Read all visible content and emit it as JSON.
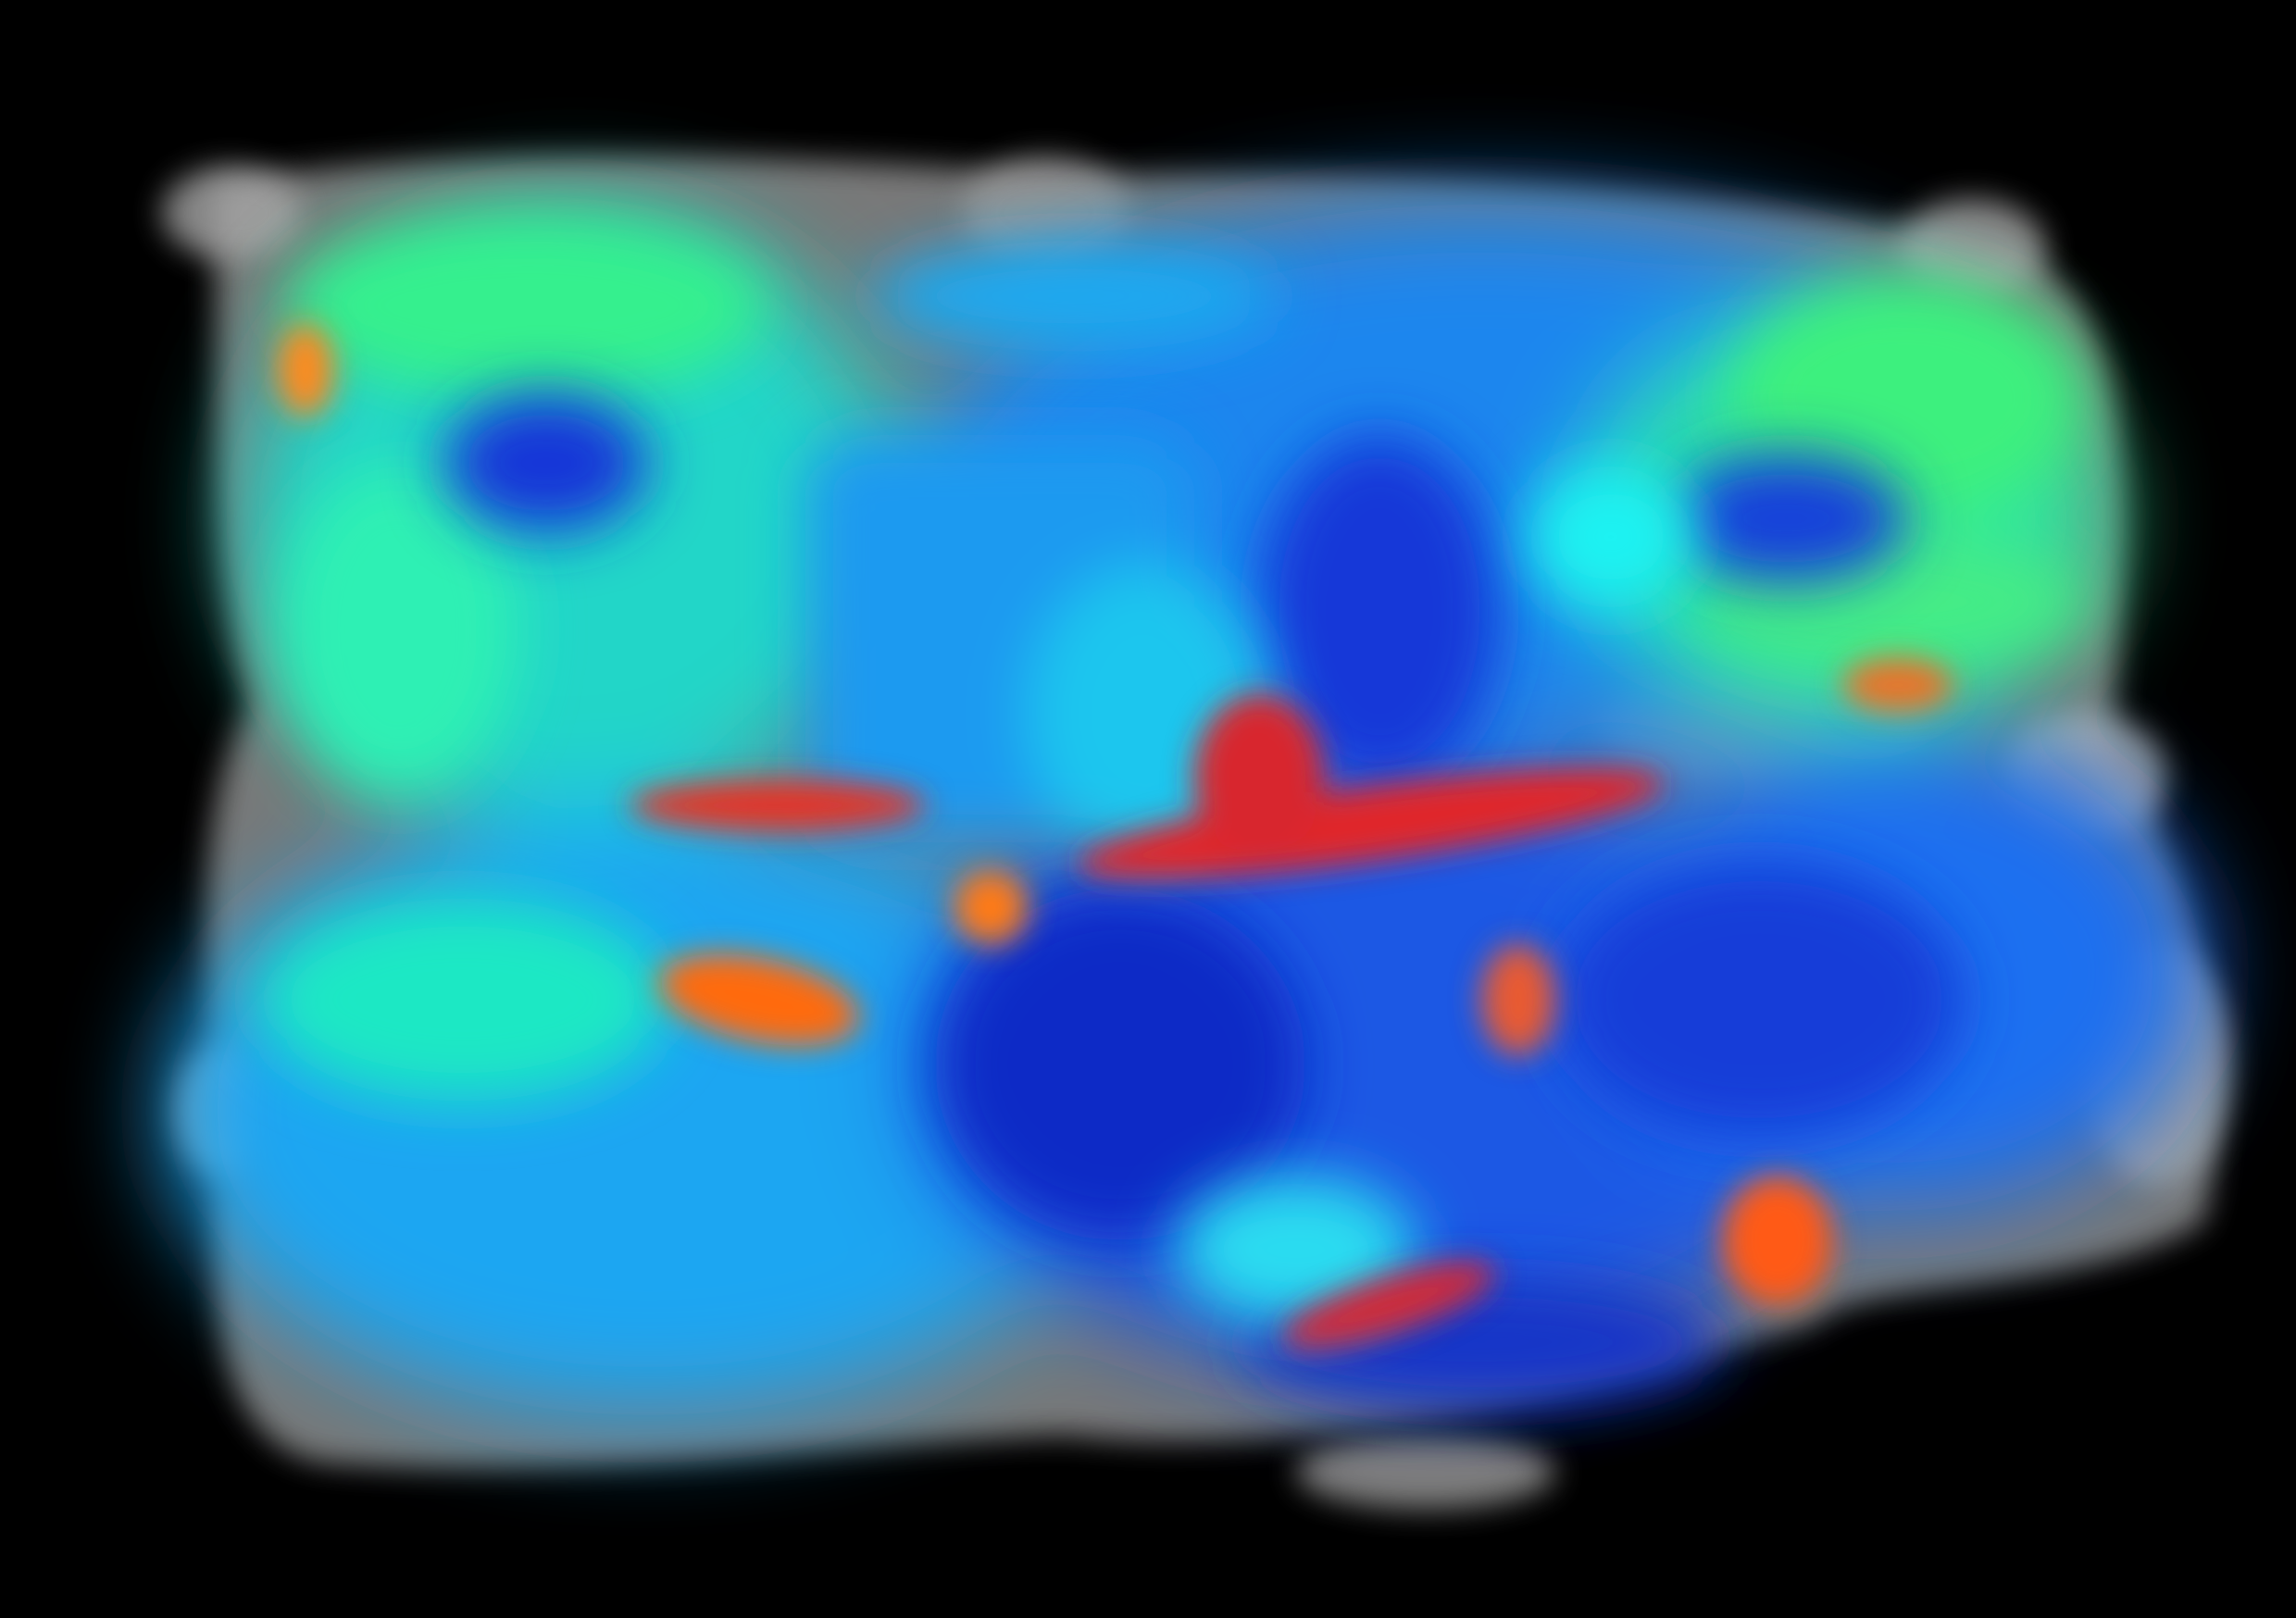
{
  "image": {
    "subject": "volumetric-scan-render",
    "colormap": "jet",
    "colors": {
      "background": "#000000",
      "halo_gray": "#9a9a9a",
      "deep_blue": "#1230d6",
      "blue": "#1e6ff0",
      "azure": "#1aa6f2",
      "cyan": "#18e6e8",
      "green": "#35f08e",
      "orange": "#ff6a10",
      "red": "#e0282a"
    }
  }
}
